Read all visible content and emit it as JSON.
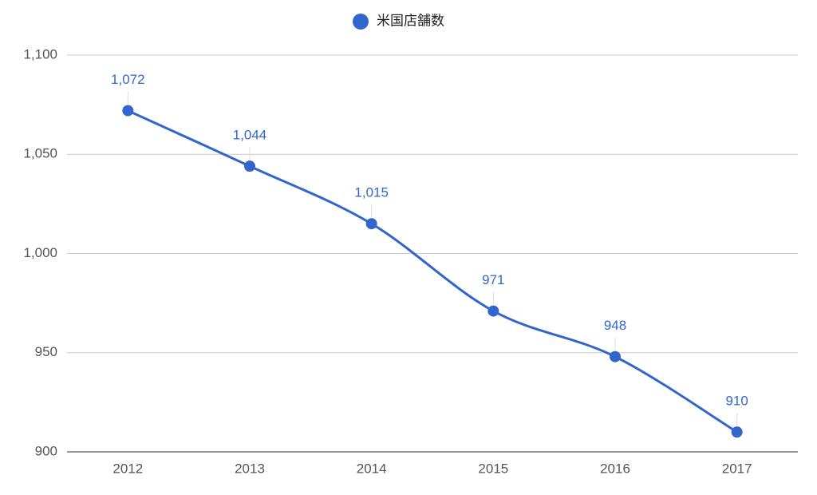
{
  "chart_data": {
    "type": "line",
    "categories": [
      "2012",
      "2013",
      "2014",
      "2015",
      "2016",
      "2017"
    ],
    "series": [
      {
        "name": "米国店舗数",
        "color": "#3366cc",
        "values": [
          1072,
          1044,
          1015,
          971,
          948,
          910
        ],
        "value_labels": [
          "1,072",
          "1,044",
          "1,015",
          "971",
          "948",
          "910"
        ]
      }
    ],
    "ylim": [
      900,
      1100
    ],
    "yticks": [
      900,
      950,
      {
        "value": 1000,
        "label": "1,000"
      },
      {
        "value": 1050,
        "label": "1,050"
      },
      {
        "value": 1100,
        "label": "1,100"
      }
    ],
    "grid": true,
    "legend": "top",
    "smooth": true
  }
}
